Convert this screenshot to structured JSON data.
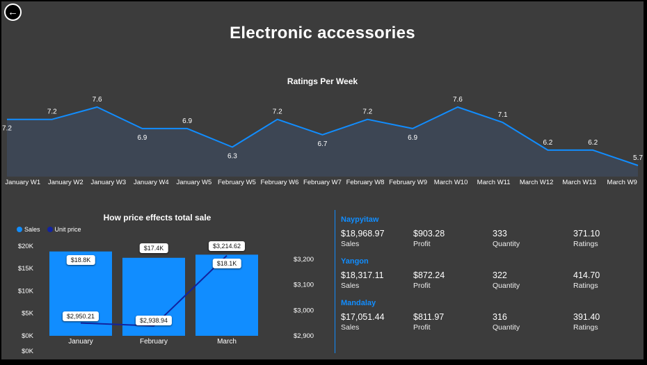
{
  "page": {
    "title": "Electronic accessories"
  },
  "icons": {
    "back_arrow": "←"
  },
  "colors": {
    "background": "#3c3c3c",
    "accent_blue": "#118DFF",
    "dark_blue": "#12239E",
    "area_fill": "#3d4654",
    "text": "#ffffff"
  },
  "chart_data": [
    {
      "type": "area",
      "title": "Ratings Per Week",
      "categories": [
        "January W1",
        "January W2",
        "January W3",
        "January W4",
        "January W5",
        "February W5",
        "February W6",
        "February W7",
        "February W8",
        "February W9",
        "March W10",
        "March W11",
        "March W12",
        "March W13",
        "March W9"
      ],
      "values": [
        7.2,
        7.2,
        7.6,
        6.9,
        6.9,
        6.3,
        7.2,
        6.7,
        7.2,
        6.9,
        7.6,
        7.1,
        6.2,
        6.2,
        5.7
      ],
      "label_positions": [
        "below",
        "above",
        "above",
        "below",
        "above",
        "below",
        "above",
        "below",
        "above",
        "below",
        "above",
        "above",
        "above",
        "above",
        "above"
      ],
      "ylim": [
        5.4,
        7.9
      ],
      "line_color": "#118DFF",
      "fill_color": "#3d4654",
      "legend_position": "none",
      "grid": false
    },
    {
      "type": "combo",
      "title": "How price effects total sale",
      "categories": [
        "January",
        "February",
        "March"
      ],
      "legend": [
        {
          "label": "Sales",
          "color": "#118DFF"
        },
        {
          "label": "Unit price",
          "color": "#12239E"
        }
      ],
      "series": [
        {
          "name": "Sales",
          "type": "bar",
          "axis": "left",
          "color": "#118DFF",
          "values": [
            18800,
            17400,
            18100
          ],
          "labels": [
            "$18.8K",
            "$17.4K",
            "$18.1K"
          ]
        },
        {
          "name": "Unit price",
          "type": "line",
          "axis": "right",
          "color": "#12239E",
          "values": [
            2950.21,
            2938.94,
            3214.62
          ],
          "labels": [
            "$2,950.21",
            "$2,938.94",
            "$3,214.62"
          ]
        }
      ],
      "left_axis_labels": [
        "$20K",
        "$15K",
        "$10K",
        "$5K",
        "$0K",
        "$0K"
      ],
      "right_axis_labels": [
        "$3,200",
        "$3,100",
        "$3,000",
        "$2,900"
      ],
      "left_ylim": [
        0,
        20000
      ],
      "right_ylim": [
        2900,
        3200
      ],
      "legend_position": "top-left",
      "grid": false
    }
  ],
  "stats_panel": {
    "cities": [
      {
        "name": "Naypyitaw",
        "metrics": [
          {
            "value": "$18,968.97",
            "label": "Sales"
          },
          {
            "value": "$903.28",
            "label": "Profit"
          },
          {
            "value": "333",
            "label": "Quantity"
          },
          {
            "value": "371.10",
            "label": "Ratings"
          }
        ]
      },
      {
        "name": "Yangon",
        "metrics": [
          {
            "value": "$18,317.11",
            "label": "Sales"
          },
          {
            "value": "$872.24",
            "label": "Profit"
          },
          {
            "value": "322",
            "label": "Quantity"
          },
          {
            "value": "414.70",
            "label": "Ratings"
          }
        ]
      },
      {
        "name": "Mandalay",
        "metrics": [
          {
            "value": "$17,051.44",
            "label": "Sales"
          },
          {
            "value": "$811.97",
            "label": "Profit"
          },
          {
            "value": "316",
            "label": "Quantity"
          },
          {
            "value": "391.40",
            "label": "Ratings"
          }
        ]
      }
    ]
  }
}
